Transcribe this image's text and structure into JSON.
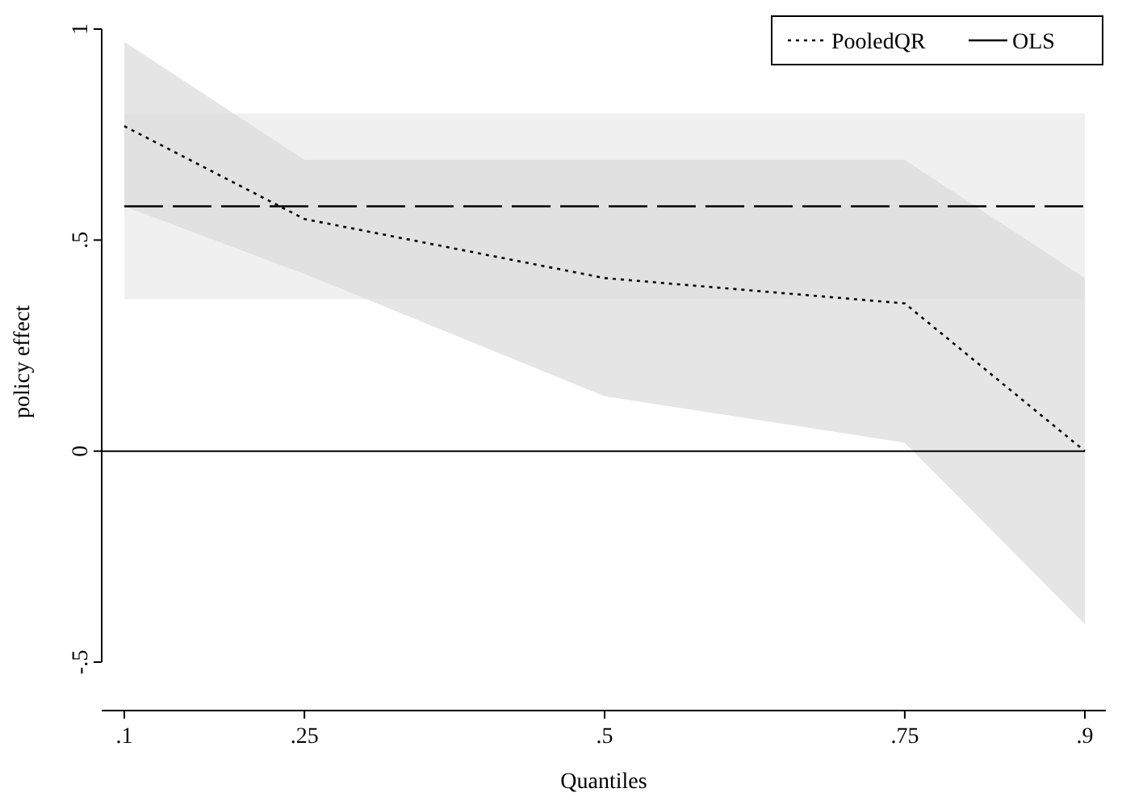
{
  "chart_data": {
    "type": "line",
    "xlabel": "Quantiles",
    "ylabel": "policy effect",
    "xlim": [
      0.1,
      0.9
    ],
    "xticks": [
      {
        "value": 0.1,
        "label": ".1"
      },
      {
        "value": 0.25,
        "label": ".25"
      },
      {
        "value": 0.5,
        "label": ".5"
      },
      {
        "value": 0.75,
        "label": ".75"
      },
      {
        "value": 0.9,
        "label": ".9"
      }
    ],
    "ylim": [
      -0.5,
      1
    ],
    "yticks": [
      {
        "value": -0.5,
        "label": "-.5"
      },
      0,
      {
        "value": 0.5,
        "label": ".5"
      },
      1
    ],
    "x": [
      0.1,
      0.25,
      0.5,
      0.75,
      0.9
    ],
    "series": [
      {
        "name": "PooledQR",
        "color": "#000000",
        "line_style": "dotted",
        "values": [
          0.77,
          0.55,
          0.41,
          0.35,
          0
        ],
        "lower": [
          0.58,
          0.42,
          0.13,
          0.02,
          -0.41
        ],
        "upper": [
          0.97,
          0.69,
          0.69,
          0.69,
          0.41
        ]
      },
      {
        "name": "OLS",
        "color": "#000000",
        "line_style": "dashed",
        "x": [
          0.1,
          0.9
        ],
        "values": [
          0.58,
          0.58
        ]
      }
    ],
    "bands": [
      {
        "axis": "y",
        "from": 0.36,
        "to": 0.8,
        "color": "#f0f0f0"
      }
    ],
    "ref_lines": [
      {
        "axis": "y",
        "value": 0,
        "color": "#000000",
        "line_style": "solid"
      }
    ],
    "grid": false,
    "legend": "top right"
  }
}
